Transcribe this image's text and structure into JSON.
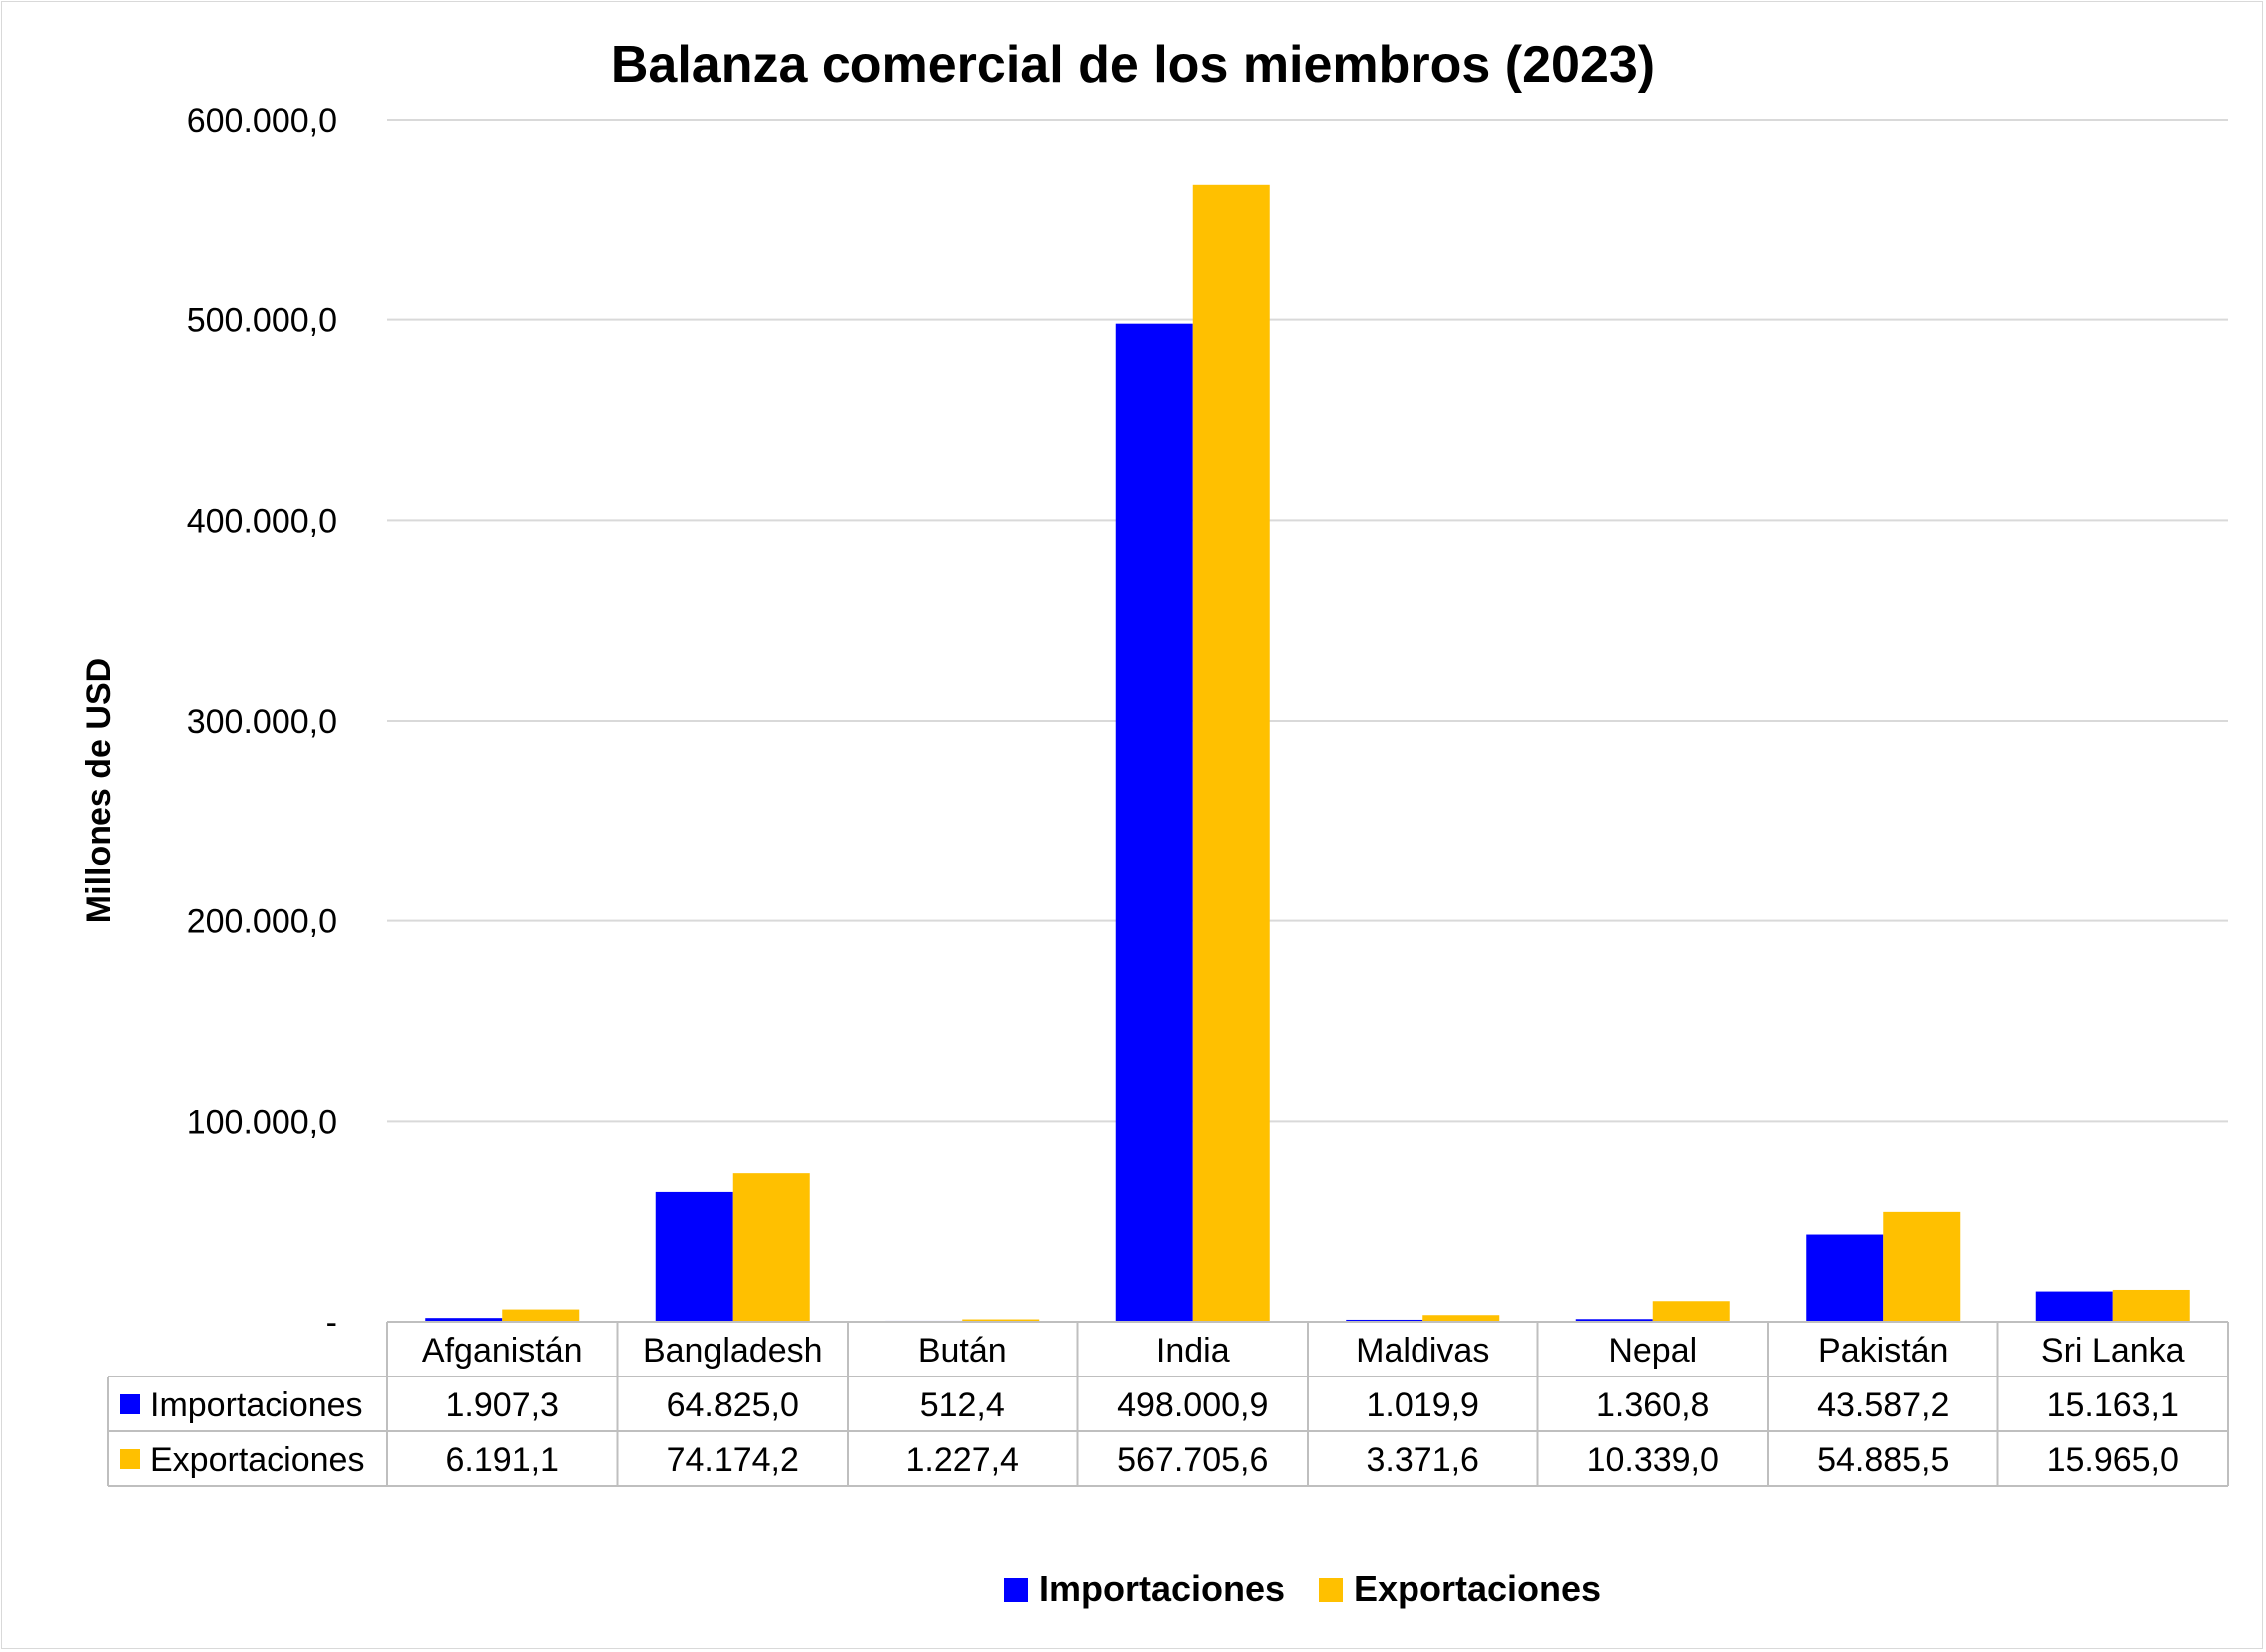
{
  "chart_data": {
    "type": "bar",
    "title": "Balanza comercial de los miembros (2023)",
    "xlabel": "",
    "ylabel": "Millones de USD",
    "ylim": [
      0,
      600000
    ],
    "yticks": [
      0,
      100000,
      200000,
      300000,
      400000,
      500000,
      600000
    ],
    "ytick_labels": [
      "-",
      "100.000,0",
      "200.000,0",
      "300.000,0",
      "400.000,0",
      "500.000,0",
      "600.000,0"
    ],
    "grid": true,
    "legend_position": "bottom",
    "categories": [
      "Afganistán",
      "Bangladesh",
      "Bután",
      "India",
      "Maldivas",
      "Nepal",
      "Pakistán",
      "Sri Lanka"
    ],
    "series": [
      {
        "name": "Importaciones",
        "color": "#0000FF",
        "values": [
          1907.3,
          64825.0,
          512.4,
          498000.9,
          1019.9,
          1360.8,
          43587.2,
          15163.1
        ],
        "labels": [
          "1.907,3",
          "64.825,0",
          "512,4",
          "498.000,9",
          "1.019,9",
          "1.360,8",
          "43.587,2",
          "15.163,1"
        ]
      },
      {
        "name": "Exportaciones",
        "color": "#FFC000",
        "values": [
          6191.1,
          74174.2,
          1227.4,
          567705.6,
          3371.6,
          10339.0,
          54885.5,
          15965.0
        ],
        "labels": [
          "6.191,1",
          "74.174,2",
          "1.227,4",
          "567.705,6",
          "3.371,6",
          "10.339,0",
          "54.885,5",
          "15.965,0"
        ]
      }
    ]
  }
}
